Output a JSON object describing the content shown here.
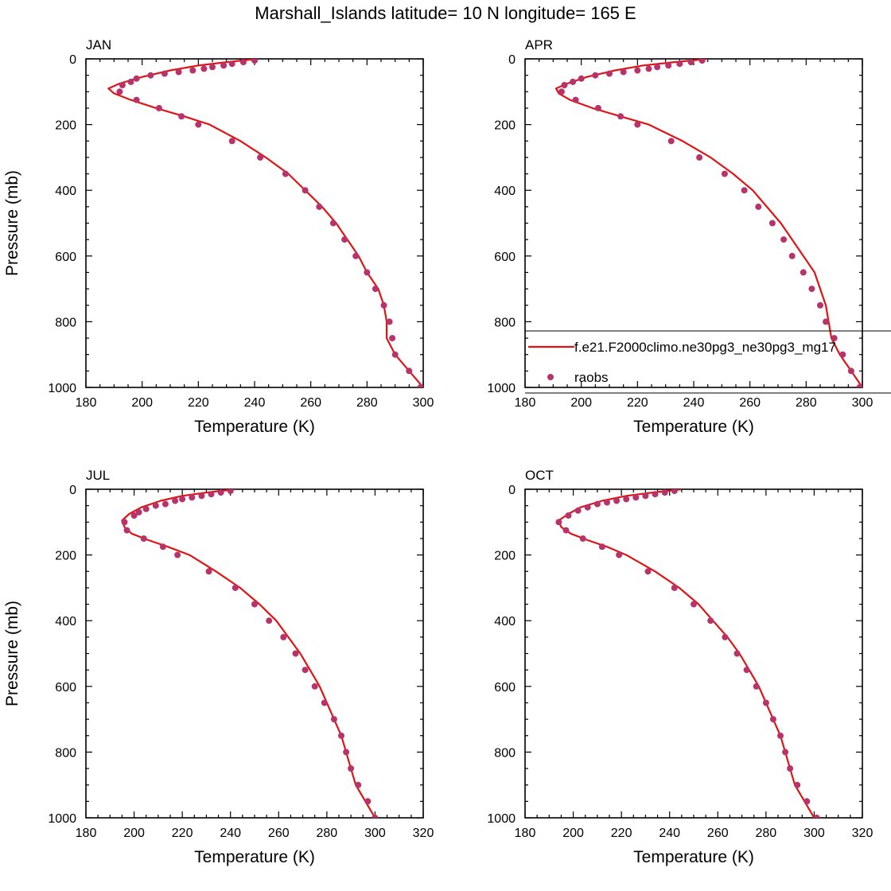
{
  "page": {
    "title": "Marshall_Islands  latitude= 10 N longitude= 165 E"
  },
  "colors": {
    "model_line": "#e01414",
    "obs_marker": "#b7336a",
    "axis": "#000000"
  },
  "legend": {
    "model_label": "f.e21.F2000climo.ne30pg3_ne30pg3_mg17",
    "obs_label": "raobs"
  },
  "chart_data": [
    {
      "type": "line",
      "title": "JAN",
      "xlabel": "Temperature (K)",
      "ylabel": "Pressure (mb)",
      "xlim": [
        180,
        300
      ],
      "ylim": [
        1000,
        0
      ],
      "y_reversed": true,
      "xticks": [
        180,
        200,
        220,
        240,
        260,
        280,
        300
      ],
      "yticks": [
        0,
        200,
        400,
        600,
        800,
        1000
      ],
      "series": [
        {
          "name": "f.e21.F2000climo.ne30pg3_ne30pg3_mg17",
          "kind": "line",
          "points": [
            [
              241,
              0
            ],
            [
              230,
              10
            ],
            [
              220,
              20
            ],
            [
              210,
              35
            ],
            [
              200,
              55
            ],
            [
              192,
              75
            ],
            [
              188,
              90
            ],
            [
              190,
              105
            ],
            [
              196,
              125
            ],
            [
              205,
              150
            ],
            [
              215,
              175
            ],
            [
              224,
              200
            ],
            [
              235,
              250
            ],
            [
              244,
              300
            ],
            [
              252,
              350
            ],
            [
              258,
              400
            ],
            [
              264,
              450
            ],
            [
              269,
              500
            ],
            [
              273,
              550
            ],
            [
              277,
              600
            ],
            [
              280,
              650
            ],
            [
              284,
              700
            ],
            [
              286,
              750
            ],
            [
              287,
              800
            ],
            [
              287,
              850
            ],
            [
              290,
              900
            ],
            [
              295,
              950
            ],
            [
              300,
              1000
            ]
          ]
        },
        {
          "name": "raobs",
          "kind": "scatter",
          "points": [
            [
              240,
              5
            ],
            [
              236,
              10
            ],
            [
              232,
              15
            ],
            [
              229,
              20
            ],
            [
              225,
              25
            ],
            [
              222,
              30
            ],
            [
              218,
              35
            ],
            [
              213,
              40
            ],
            [
              208,
              45
            ],
            [
              203,
              50
            ],
            [
              198,
              60
            ],
            [
              196,
              70
            ],
            [
              193,
              80
            ],
            [
              192,
              100
            ],
            [
              198,
              125
            ],
            [
              206,
              150
            ],
            [
              214,
              175
            ],
            [
              220,
              200
            ],
            [
              232,
              250
            ],
            [
              242,
              300
            ],
            [
              251,
              350
            ],
            [
              258,
              400
            ],
            [
              263,
              450
            ],
            [
              268,
              500
            ],
            [
              272,
              550
            ],
            [
              276,
              600
            ],
            [
              280,
              650
            ],
            [
              283,
              700
            ],
            [
              286,
              750
            ],
            [
              288,
              800
            ],
            [
              289,
              850
            ],
            [
              290,
              900
            ],
            [
              295,
              950
            ],
            [
              299,
              1000
            ]
          ]
        }
      ]
    },
    {
      "type": "line",
      "title": "APR",
      "xlabel": "Temperature (K)",
      "ylabel": "",
      "xlim": [
        180,
        300
      ],
      "ylim": [
        1000,
        0
      ],
      "y_reversed": true,
      "xticks": [
        180,
        200,
        220,
        240,
        260,
        280,
        300
      ],
      "yticks": [
        0,
        200,
        400,
        600,
        800,
        1000
      ],
      "legend_position": "lower-right",
      "series": [
        {
          "name": "f.e21.F2000climo.ne30pg3_ne30pg3_mg17",
          "kind": "line",
          "points": [
            [
              245,
              0
            ],
            [
              233,
              10
            ],
            [
              222,
              20
            ],
            [
              212,
              35
            ],
            [
              202,
              55
            ],
            [
              195,
              75
            ],
            [
              191,
              90
            ],
            [
              192,
              105
            ],
            [
              196,
              125
            ],
            [
              204,
              150
            ],
            [
              214,
              175
            ],
            [
              224,
              200
            ],
            [
              236,
              250
            ],
            [
              246,
              300
            ],
            [
              254,
              350
            ],
            [
              261,
              400
            ],
            [
              266,
              450
            ],
            [
              271,
              500
            ],
            [
              275,
              550
            ],
            [
              279,
              600
            ],
            [
              283,
              650
            ],
            [
              285,
              700
            ],
            [
              287,
              750
            ],
            [
              288,
              800
            ],
            [
              289,
              850
            ],
            [
              292,
              900
            ],
            [
              296,
              950
            ],
            [
              300,
              1000
            ]
          ]
        },
        {
          "name": "raobs",
          "kind": "scatter",
          "points": [
            [
              243,
              5
            ],
            [
              239,
              10
            ],
            [
              235,
              15
            ],
            [
              231,
              20
            ],
            [
              227,
              25
            ],
            [
              224,
              30
            ],
            [
              220,
              35
            ],
            [
              215,
              40
            ],
            [
              210,
              45
            ],
            [
              205,
              50
            ],
            [
              200,
              60
            ],
            [
              197,
              70
            ],
            [
              194,
              80
            ],
            [
              193,
              100
            ],
            [
              198,
              125
            ],
            [
              206,
              150
            ],
            [
              214,
              175
            ],
            [
              220,
              200
            ],
            [
              232,
              250
            ],
            [
              242,
              300
            ],
            [
              251,
              350
            ],
            [
              258,
              400
            ],
            [
              263,
              450
            ],
            [
              268,
              500
            ],
            [
              272,
              550
            ],
            [
              275,
              600
            ],
            [
              279,
              650
            ],
            [
              282,
              700
            ],
            [
              285,
              750
            ],
            [
              287,
              800
            ],
            [
              290,
              850
            ],
            [
              293,
              900
            ],
            [
              296,
              950
            ],
            [
              299,
              1000
            ]
          ]
        }
      ]
    },
    {
      "type": "line",
      "title": "JUL",
      "xlabel": "Temperature (K)",
      "ylabel": "Pressure (mb)",
      "xlim": [
        180,
        320
      ],
      "ylim": [
        1000,
        0
      ],
      "y_reversed": true,
      "xticks": [
        180,
        200,
        220,
        240,
        260,
        280,
        300,
        320
      ],
      "yticks": [
        0,
        200,
        400,
        600,
        800,
        1000
      ],
      "series": [
        {
          "name": "f.e21.F2000climo.ne30pg3_ne30pg3_mg17",
          "kind": "line",
          "points": [
            [
              242,
              0
            ],
            [
              230,
              10
            ],
            [
              220,
              20
            ],
            [
              211,
              35
            ],
            [
              203,
              55
            ],
            [
              198,
              75
            ],
            [
              195,
              95
            ],
            [
              196,
              115
            ],
            [
              199,
              135
            ],
            [
              206,
              155
            ],
            [
              214,
              175
            ],
            [
              223,
              200
            ],
            [
              234,
              250
            ],
            [
              244,
              300
            ],
            [
              252,
              350
            ],
            [
              259,
              400
            ],
            [
              264,
              450
            ],
            [
              269,
              500
            ],
            [
              273,
              550
            ],
            [
              277,
              600
            ],
            [
              280,
              650
            ],
            [
              283,
              700
            ],
            [
              286,
              750
            ],
            [
              288,
              800
            ],
            [
              290,
              850
            ],
            [
              292,
              900
            ],
            [
              296,
              950
            ],
            [
              300,
              1000
            ]
          ]
        },
        {
          "name": "raobs",
          "kind": "scatter",
          "points": [
            [
              240,
              5
            ],
            [
              236,
              10
            ],
            [
              232,
              15
            ],
            [
              228,
              20
            ],
            [
              224,
              25
            ],
            [
              220,
              30
            ],
            [
              217,
              35
            ],
            [
              213,
              45
            ],
            [
              209,
              50
            ],
            [
              205,
              60
            ],
            [
              202,
              70
            ],
            [
              200,
              80
            ],
            [
              196,
              100
            ],
            [
              197,
              125
            ],
            [
              204,
              150
            ],
            [
              212,
              175
            ],
            [
              218,
              200
            ],
            [
              231,
              250
            ],
            [
              242,
              300
            ],
            [
              250,
              350
            ],
            [
              256,
              400
            ],
            [
              262,
              450
            ],
            [
              267,
              500
            ],
            [
              271,
              550
            ],
            [
              275,
              600
            ],
            [
              279,
              650
            ],
            [
              283,
              700
            ],
            [
              286,
              750
            ],
            [
              288,
              800
            ],
            [
              290,
              850
            ],
            [
              293,
              900
            ],
            [
              297,
              950
            ],
            [
              300,
              1000
            ]
          ]
        }
      ]
    },
    {
      "type": "line",
      "title": "OCT",
      "xlabel": "Temperature (K)",
      "ylabel": "",
      "xlim": [
        180,
        320
      ],
      "ylim": [
        1000,
        0
      ],
      "y_reversed": true,
      "xticks": [
        180,
        200,
        220,
        240,
        260,
        280,
        300,
        320
      ],
      "yticks": [
        0,
        200,
        400,
        600,
        800,
        1000
      ],
      "series": [
        {
          "name": "f.e21.F2000climo.ne30pg3_ne30pg3_mg17",
          "kind": "line",
          "points": [
            [
              245,
              0
            ],
            [
              233,
              10
            ],
            [
              222,
              20
            ],
            [
              212,
              35
            ],
            [
              203,
              55
            ],
            [
              198,
              75
            ],
            [
              194,
              95
            ],
            [
              195,
              115
            ],
            [
              199,
              135
            ],
            [
              206,
              155
            ],
            [
              214,
              175
            ],
            [
              222,
              200
            ],
            [
              234,
              250
            ],
            [
              244,
              300
            ],
            [
              252,
              350
            ],
            [
              258,
              400
            ],
            [
              264,
              450
            ],
            [
              269,
              500
            ],
            [
              273,
              550
            ],
            [
              277,
              600
            ],
            [
              280,
              650
            ],
            [
              283,
              700
            ],
            [
              286,
              750
            ],
            [
              288,
              800
            ],
            [
              290,
              850
            ],
            [
              292,
              900
            ],
            [
              296,
              950
            ],
            [
              300,
              1000
            ]
          ]
        },
        {
          "name": "raobs",
          "kind": "scatter",
          "points": [
            [
              242,
              5
            ],
            [
              238,
              10
            ],
            [
              234,
              15
            ],
            [
              230,
              20
            ],
            [
              226,
              25
            ],
            [
              222,
              30
            ],
            [
              218,
              35
            ],
            [
              214,
              40
            ],
            [
              210,
              45
            ],
            [
              206,
              55
            ],
            [
              202,
              65
            ],
            [
              198,
              80
            ],
            [
              194,
              100
            ],
            [
              197,
              125
            ],
            [
              204,
              150
            ],
            [
              212,
              175
            ],
            [
              219,
              200
            ],
            [
              231,
              250
            ],
            [
              242,
              300
            ],
            [
              250,
              350
            ],
            [
              257,
              400
            ],
            [
              263,
              450
            ],
            [
              268,
              500
            ],
            [
              272,
              550
            ],
            [
              276,
              600
            ],
            [
              280,
              650
            ],
            [
              283,
              700
            ],
            [
              286,
              750
            ],
            [
              288,
              800
            ],
            [
              290,
              850
            ],
            [
              293,
              900
            ],
            [
              297,
              950
            ],
            [
              301,
              1000
            ]
          ]
        }
      ]
    }
  ]
}
